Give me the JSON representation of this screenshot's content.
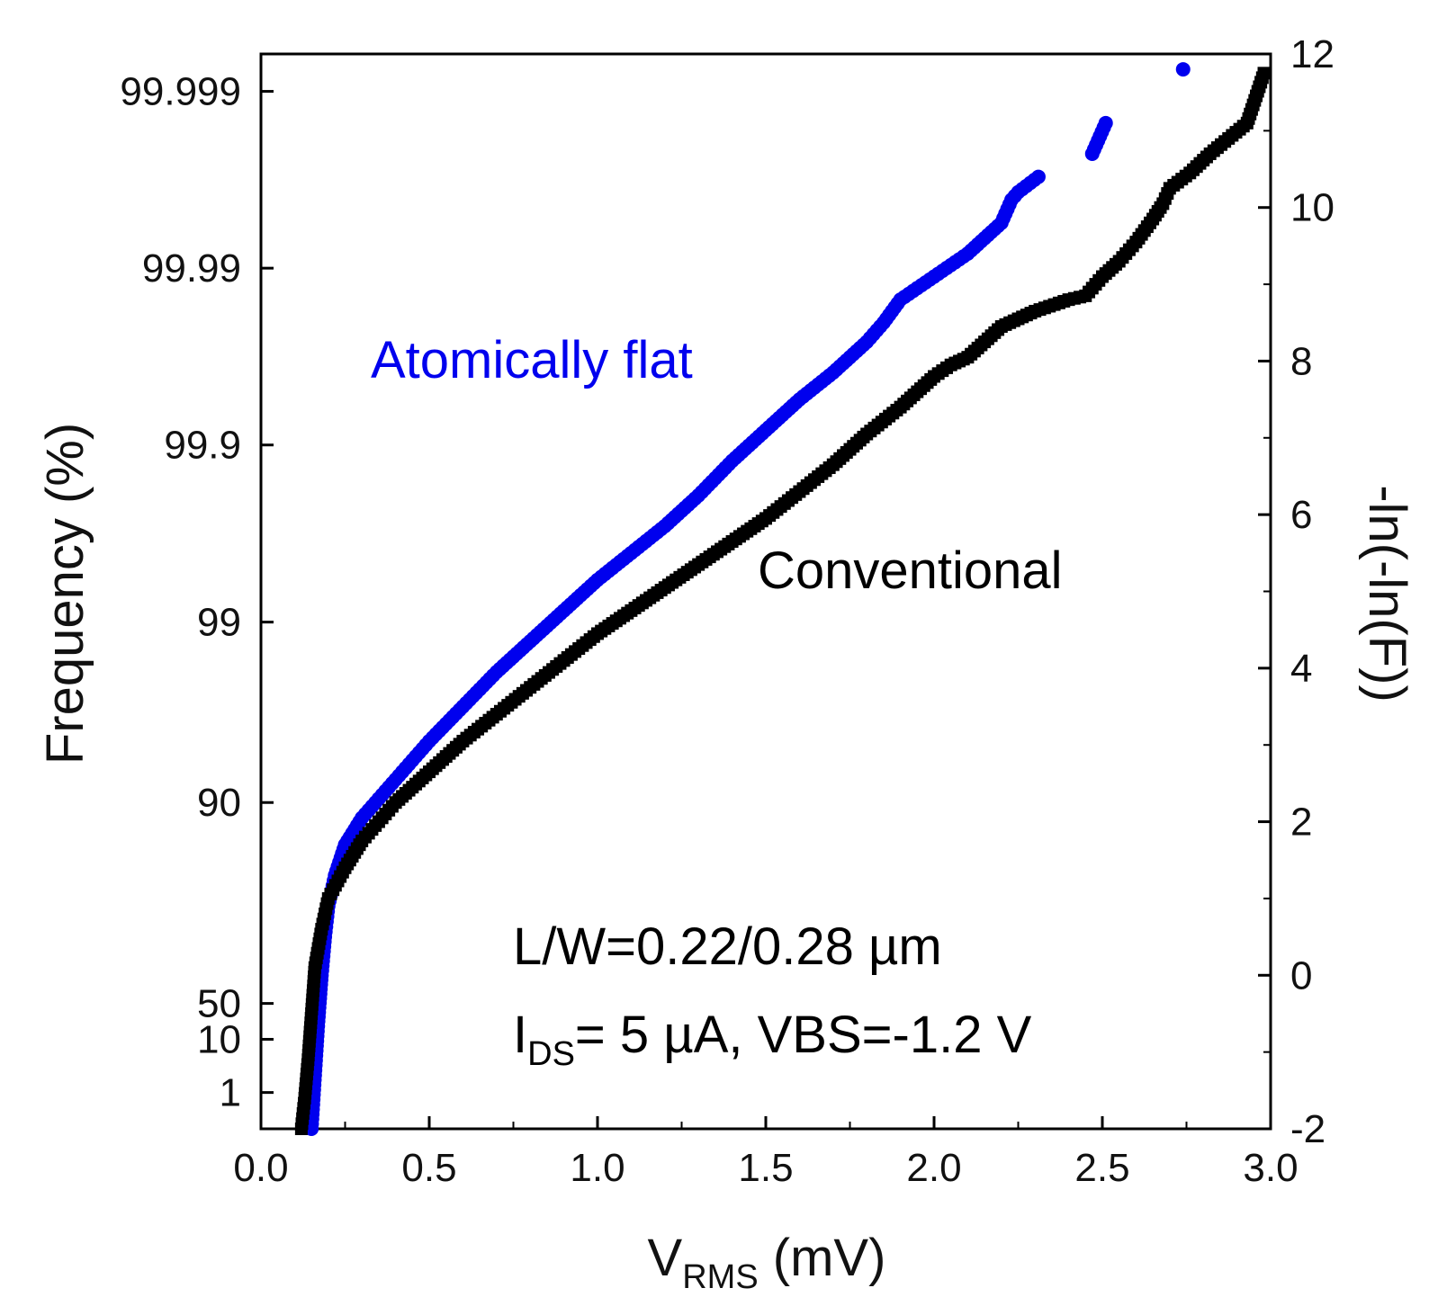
{
  "chart_data": {
    "type": "scatter",
    "title": "",
    "xlabel": {
      "main": "V",
      "sub": "RMS",
      "suffix": " (mV)"
    },
    "ylabel": "Frequency (%)",
    "y2label": "-ln(-ln(F))",
    "xlim": [
      0.0,
      3.0
    ],
    "ylim_right": [
      -2,
      12
    ],
    "x_ticks": [
      "0.0",
      "0.5",
      "1.0",
      "1.5",
      "2.0",
      "2.5",
      "3.0"
    ],
    "y_right_ticks": [
      "-2",
      "0",
      "2",
      "4",
      "6",
      "8",
      "10",
      "12"
    ],
    "y_left_ticks": [
      {
        "label": "1",
        "y2": -1.527
      },
      {
        "label": "10",
        "y2": -0.834
      },
      {
        "label": "50",
        "y2": -0.367
      },
      {
        "label": "90",
        "y2": 2.25
      },
      {
        "label": "99",
        "y2": 4.6
      },
      {
        "label": "99.9",
        "y2": 6.907
      },
      {
        "label": "99.99",
        "y2": 9.21
      },
      {
        "label": "99.999",
        "y2": 11.513
      }
    ],
    "series": [
      {
        "name": "Atomically flat",
        "color": "#0000ee",
        "marker": "circle",
        "x": [
          0.15,
          0.16,
          0.17,
          0.18,
          0.19,
          0.2,
          0.22,
          0.25,
          0.3,
          0.35,
          0.4,
          0.45,
          0.5,
          0.6,
          0.7,
          0.8,
          0.9,
          1.0,
          1.1,
          1.2,
          1.3,
          1.4,
          1.5,
          1.6,
          1.7,
          1.75,
          1.8,
          1.85,
          1.9,
          1.95,
          2.0,
          2.05,
          2.1,
          2.15,
          2.2,
          2.23,
          2.25,
          2.31,
          2.47,
          2.51,
          2.74
        ],
        "y": [
          -2.0,
          -1.3,
          -0.6,
          0.0,
          0.5,
          0.9,
          1.3,
          1.7,
          2.05,
          2.3,
          2.55,
          2.8,
          3.05,
          3.5,
          3.95,
          4.35,
          4.75,
          5.15,
          5.5,
          5.85,
          6.25,
          6.7,
          7.1,
          7.5,
          7.85,
          8.05,
          8.25,
          8.5,
          8.8,
          8.95,
          9.1,
          9.25,
          9.4,
          9.6,
          9.8,
          10.1,
          10.2,
          10.4,
          10.7,
          11.1,
          11.8
        ]
      },
      {
        "name": "Conventional",
        "color": "#000000",
        "marker": "square",
        "x": [
          0.12,
          0.13,
          0.14,
          0.15,
          0.16,
          0.18,
          0.2,
          0.25,
          0.3,
          0.35,
          0.4,
          0.45,
          0.5,
          0.6,
          0.7,
          0.8,
          0.9,
          1.0,
          1.1,
          1.2,
          1.3,
          1.4,
          1.5,
          1.6,
          1.7,
          1.8,
          1.9,
          2.0,
          2.05,
          2.1,
          2.15,
          2.2,
          2.3,
          2.4,
          2.45,
          2.5,
          2.55,
          2.6,
          2.65,
          2.68,
          2.7,
          2.76,
          2.82,
          2.93,
          2.98
        ],
        "y": [
          -2.0,
          -1.6,
          -1.1,
          -0.5,
          0.1,
          0.6,
          1.0,
          1.4,
          1.75,
          2.0,
          2.25,
          2.45,
          2.65,
          3.05,
          3.4,
          3.75,
          4.1,
          4.45,
          4.75,
          5.05,
          5.35,
          5.65,
          5.95,
          6.3,
          6.65,
          7.05,
          7.4,
          7.8,
          7.95,
          8.05,
          8.25,
          8.45,
          8.65,
          8.8,
          8.85,
          9.1,
          9.3,
          9.55,
          9.85,
          10.05,
          10.25,
          10.45,
          10.7,
          11.1,
          11.75
        ]
      }
    ],
    "annotations": [
      {
        "text": "Atomically flat",
        "color": "#0000ee"
      },
      {
        "text": "Conventional",
        "color": "#000000"
      },
      {
        "text": "L/W=0.22/0.28 µm",
        "color": "#000000"
      },
      {
        "main": "I",
        "sub": "DS",
        "rest": "= 5 µA, VBS=-1.2 V",
        "color": "#000000"
      }
    ]
  }
}
